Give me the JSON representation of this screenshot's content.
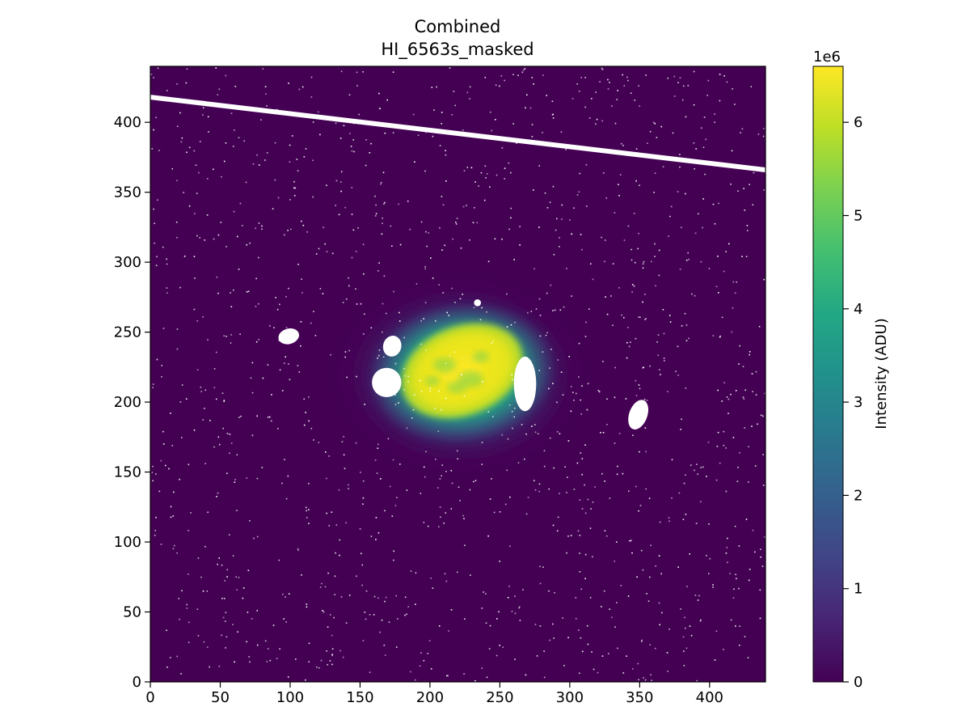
{
  "chart_data": {
    "type": "heatmap",
    "title_line1": "Combined",
    "title_line2": "HI_6563s_masked",
    "xlabel": "",
    "ylabel": "",
    "xlim": [
      0,
      440
    ],
    "ylim": [
      0,
      440
    ],
    "x_ticks": [
      0,
      50,
      100,
      150,
      200,
      250,
      300,
      350,
      400
    ],
    "y_ticks": [
      0,
      50,
      100,
      150,
      200,
      250,
      300,
      350,
      400
    ],
    "grid": false,
    "colormap": "viridis",
    "mask_color": "#ffffff",
    "colorbar": {
      "label": "Intensity (ADU)",
      "min": 0,
      "max": 6600000,
      "offset_text": "1e6",
      "ticks": [
        0,
        1,
        2,
        3,
        4,
        5,
        6
      ],
      "tick_scale": 1000000
    },
    "features": {
      "nebula": {
        "x": 222,
        "y": 222,
        "peak_value": 6600000
      },
      "masked_streak": {
        "x0": 0,
        "y0": 418,
        "x1": 440,
        "y1": 366
      },
      "masked_blobs": [
        {
          "x": 99,
          "y": 247
        },
        {
          "x": 173,
          "y": 240
        },
        {
          "x": 169,
          "y": 214
        },
        {
          "x": 268,
          "y": 213
        },
        {
          "x": 349,
          "y": 191
        },
        {
          "x": 234,
          "y": 271
        }
      ],
      "masked_pixel_count": 1400
    }
  }
}
